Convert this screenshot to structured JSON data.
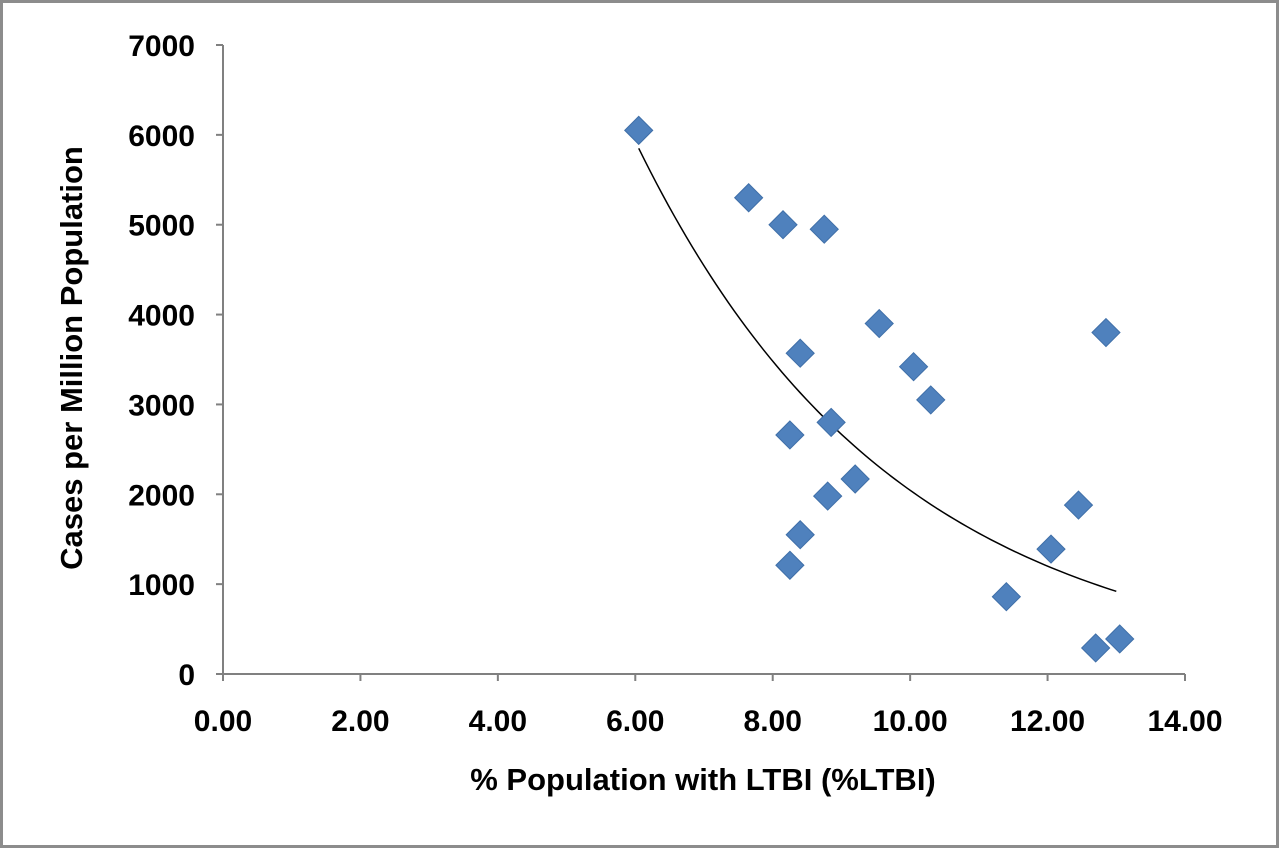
{
  "chart_data": {
    "type": "scatter",
    "title": "",
    "xlabel": "%   Population with LTBI (%LTBI)",
    "ylabel": "Cases per Million Population",
    "xlim": [
      0,
      14
    ],
    "ylim": [
      0,
      7000
    ],
    "x_ticks": [
      "0.00",
      "2.00",
      "4.00",
      "6.00",
      "8.00",
      "10.00",
      "12.00",
      "14.00"
    ],
    "y_ticks": [
      "0",
      "1000",
      "2000",
      "3000",
      "4000",
      "5000",
      "6000",
      "7000"
    ],
    "grid": false,
    "legend": "none",
    "marker_color": "#4f81bd",
    "series": [
      {
        "points": [
          [
            6.05,
            6050
          ],
          [
            7.65,
            5300
          ],
          [
            8.15,
            5000
          ],
          [
            8.75,
            4950
          ],
          [
            9.55,
            3900
          ],
          [
            12.85,
            3800
          ],
          [
            8.4,
            3570
          ],
          [
            10.05,
            3420
          ],
          [
            10.3,
            3050
          ],
          [
            8.85,
            2800
          ],
          [
            8.25,
            2660
          ],
          [
            9.2,
            2170
          ],
          [
            8.8,
            1980
          ],
          [
            12.45,
            1880
          ],
          [
            8.4,
            1550
          ],
          [
            12.05,
            1390
          ],
          [
            8.25,
            1210
          ],
          [
            11.4,
            860
          ],
          [
            13.05,
            390
          ],
          [
            12.7,
            290
          ]
        ]
      }
    ],
    "trendline": {
      "kind": "exponential",
      "color": "#000000",
      "x_range": [
        6.05,
        13.0
      ],
      "y_at_start": 5850,
      "y_at_end": 920
    }
  }
}
